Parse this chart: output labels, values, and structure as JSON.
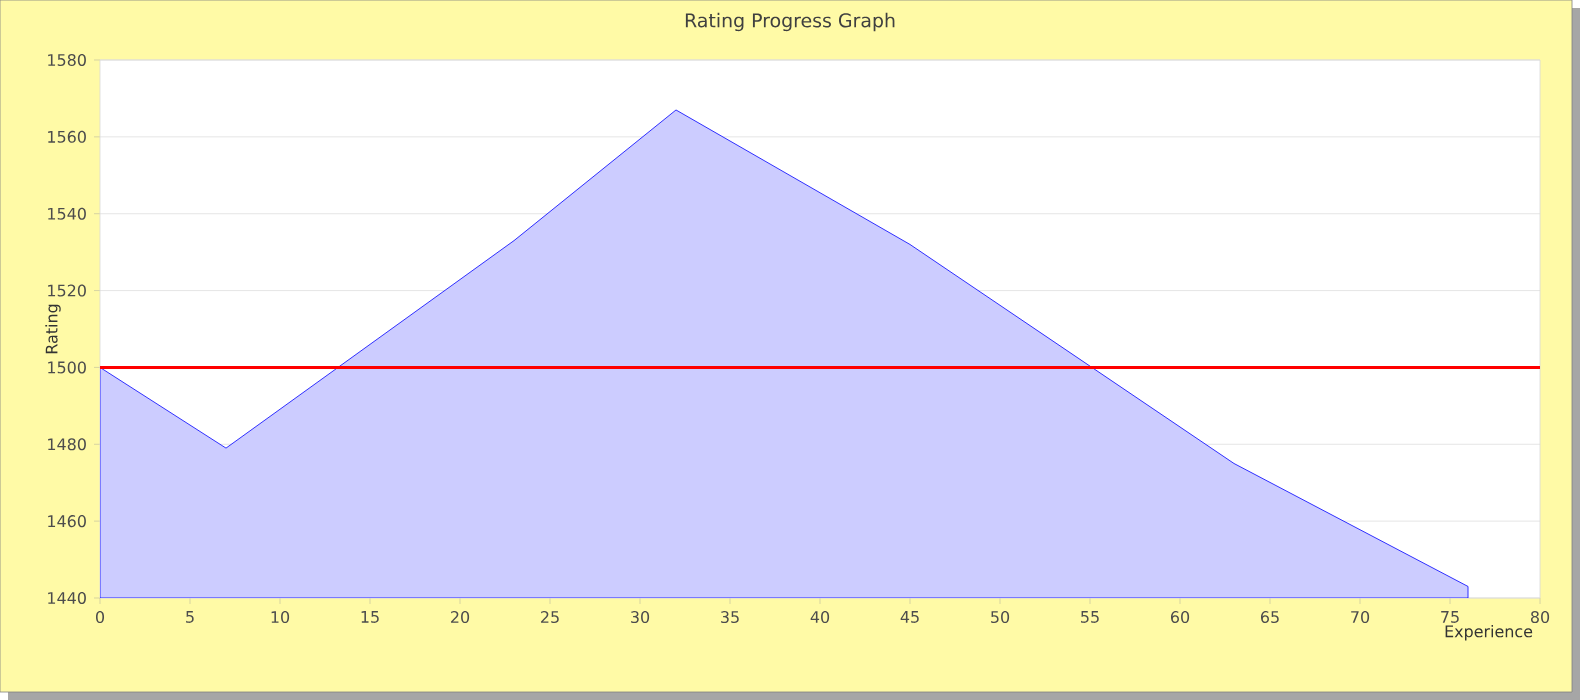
{
  "chart_data": {
    "type": "area",
    "title": "Rating Progress Graph",
    "xlabel": "Experience",
    "ylabel": "Rating",
    "x": [
      0,
      7,
      23,
      32,
      45,
      63,
      76
    ],
    "series": [
      {
        "color": "#ccccff",
        "values": [
          1500,
          1479,
          1533,
          1567,
          1532,
          1475,
          1443
        ]
      }
    ],
    "xlim": [
      0,
      80
    ],
    "xticks": [
      0,
      5,
      10,
      15,
      20,
      25,
      30,
      35,
      40,
      45,
      50,
      55,
      60,
      65,
      70,
      75,
      80
    ],
    "ylim": [
      1440,
      1580
    ],
    "yticks": [
      1440,
      1460,
      1480,
      1500,
      1520,
      1540,
      1560,
      1580
    ],
    "grid": "y",
    "ref_lines": [
      {
        "axis": "y",
        "value": 1500,
        "color": "#ff0000"
      }
    ]
  }
}
